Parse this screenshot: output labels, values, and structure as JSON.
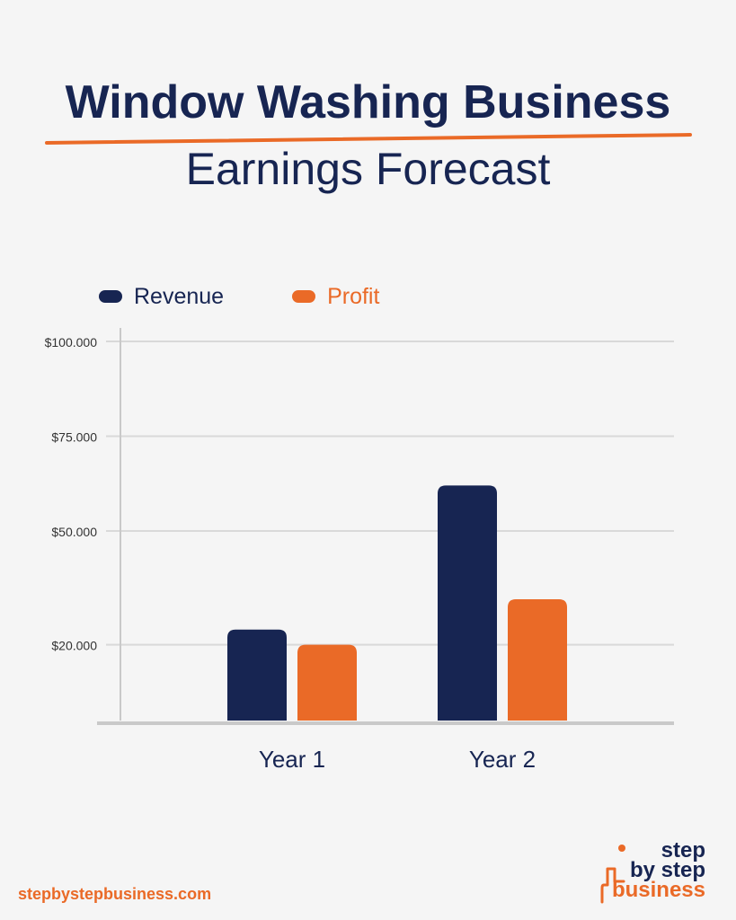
{
  "title": "Window Washing Business",
  "subtitle": "Earnings Forecast",
  "colors": {
    "background": "#f5f5f5",
    "navy": "#172552",
    "orange": "#ea6a27",
    "grid": "#d9d9d9",
    "axis": "#c9c9c9"
  },
  "chart_data": {
    "type": "bar",
    "categories": [
      "Year 1",
      "Year 2"
    ],
    "series": [
      {
        "name": "Revenue",
        "color": "#172552",
        "values": [
          24000,
          62000
        ]
      },
      {
        "name": "Profit",
        "color": "#ea6a27",
        "values": [
          20000,
          32000
        ]
      }
    ],
    "yticks": [
      {
        "label": "$20.000",
        "value": 20000
      },
      {
        "label": "$50.000",
        "value": 50000
      },
      {
        "label": "$75.000",
        "value": 75000
      },
      {
        "label": "$100.000",
        "value": 100000
      }
    ],
    "ylim": [
      0,
      100000
    ],
    "grid": true,
    "legend_position": "top-left"
  },
  "footer": {
    "url": "stepbystepbusiness.com"
  },
  "brand": {
    "line1": "step",
    "line2": "by step",
    "line3": "business",
    "icon": "step-logo-icon"
  }
}
